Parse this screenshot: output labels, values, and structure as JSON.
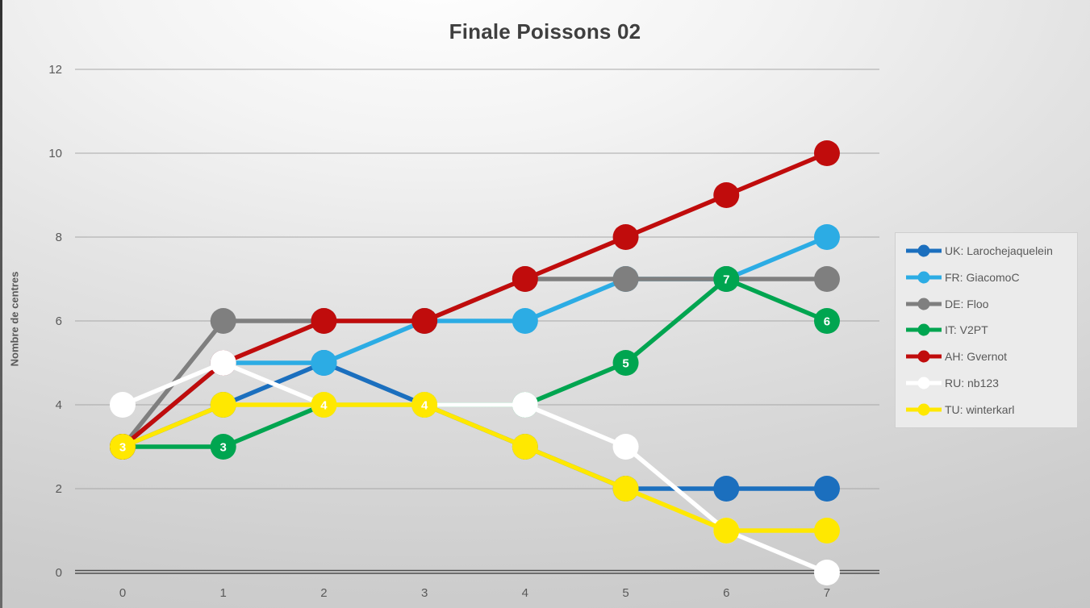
{
  "title": "Finale Poissons 02",
  "y_axis": {
    "label": "Nombre de centres",
    "ticks": [
      0,
      2,
      4,
      6,
      8,
      10,
      12
    ],
    "min": 0,
    "max": 12
  },
  "x_axis": {
    "ticks": [
      "0",
      "1",
      "2",
      "3",
      "4",
      "5",
      "6",
      "7"
    ]
  },
  "chart_data": {
    "type": "line",
    "title": "Finale Poissons 02",
    "xlabel": "",
    "ylabel": "Nombre de centres",
    "ylim": [
      0,
      12
    ],
    "grid": true,
    "legend_position": "right",
    "x": [
      0,
      1,
      2,
      3,
      4,
      5,
      6,
      7
    ],
    "series": [
      {
        "name": "UK: Larochejaquelein",
        "color": "#1b6fbe",
        "values": [
          3,
          4,
          5,
          4,
          3,
          2,
          2,
          2
        ],
        "point_labels": false
      },
      {
        "name": "FR: GiacomoC",
        "color": "#2cace4",
        "values": [
          3,
          5,
          5,
          6,
          6,
          7,
          7,
          8
        ],
        "point_labels": false
      },
      {
        "name": "DE: Floo",
        "color": "#7f7f7f",
        "values": [
          3,
          6,
          6,
          6,
          7,
          7,
          7,
          7
        ],
        "point_labels": false
      },
      {
        "name": "IT: V2PT",
        "color": "#00a550",
        "values": [
          3,
          3,
          4,
          4,
          4,
          5,
          7,
          6
        ],
        "point_labels": true
      },
      {
        "name": "AH: Gvernot",
        "color": "#c00c0c",
        "values": [
          3,
          5,
          6,
          6,
          7,
          8,
          9,
          10
        ],
        "point_labels": false
      },
      {
        "name": "RU: nb123",
        "color": "#ffffff",
        "values": [
          4,
          5,
          4,
          4,
          4,
          3,
          1,
          0
        ],
        "point_labels": false
      },
      {
        "name": "TU: winterkarl",
        "color": "#ffe800",
        "values": [
          3,
          4,
          4,
          4,
          3,
          2,
          1,
          1
        ],
        "point_labels": false
      }
    ],
    "point_label_color": "#ffffff"
  },
  "colors": {
    "title_text": "#3f3f3f",
    "axis_text": "#595959",
    "gridline": "#a8a8a8",
    "baseline": "#4f4f4f",
    "legend_bg": "#ebebeb"
  }
}
